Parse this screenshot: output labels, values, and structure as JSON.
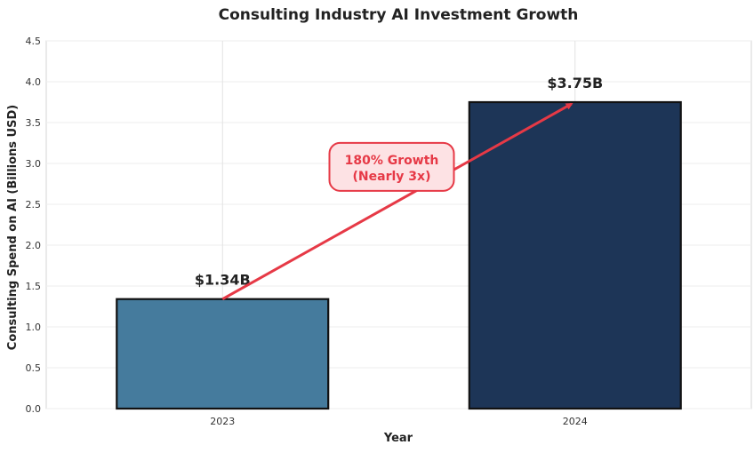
{
  "chart_data": {
    "type": "bar",
    "title": "Consulting Industry AI Investment Growth",
    "xlabel": "Year",
    "ylabel": "Consulting Spend on AI (Billions USD)",
    "categories": [
      "2023",
      "2024"
    ],
    "values": [
      1.34,
      3.75
    ],
    "value_labels": [
      "$1.34B",
      "$3.75B"
    ],
    "bar_colors": [
      "#457b9d",
      "#1d3557"
    ],
    "ylim": [
      0,
      4.5
    ],
    "yticks": [
      "0.0",
      "0.5",
      "1.0",
      "1.5",
      "2.0",
      "2.5",
      "3.0",
      "3.5",
      "4.0",
      "4.5"
    ],
    "grid": true,
    "annotation": {
      "line1": "180% Growth",
      "line2": "(Nearly 3x)",
      "color": "#e63946",
      "fill": "#fde2e4"
    }
  }
}
